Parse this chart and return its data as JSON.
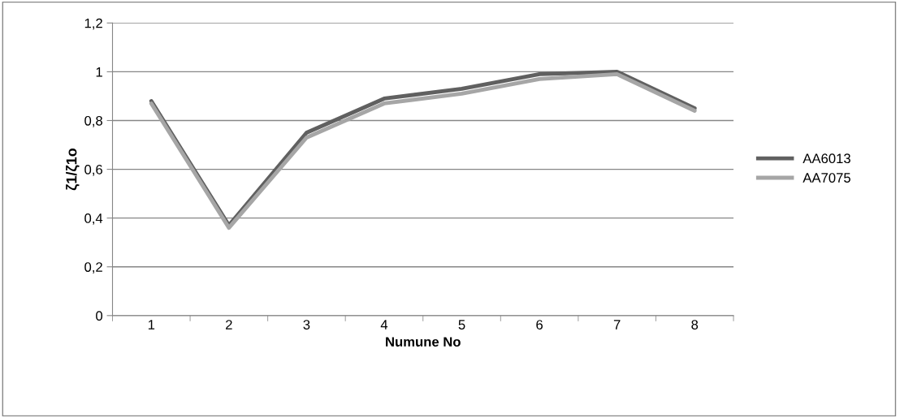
{
  "chart_data": {
    "type": "line",
    "xlabel": "Numune No",
    "ylabel": "ζ1/ζ1o",
    "categories": [
      "1",
      "2",
      "3",
      "4",
      "5",
      "6",
      "7",
      "8"
    ],
    "series": [
      {
        "name": "AA6013",
        "color": "#606060",
        "values": [
          0.88,
          0.37,
          0.75,
          0.89,
          0.93,
          0.99,
          1.0,
          0.85
        ]
      },
      {
        "name": "AA7075",
        "color": "#a6a6a6",
        "values": [
          0.87,
          0.36,
          0.73,
          0.87,
          0.91,
          0.97,
          0.99,
          0.84
        ]
      }
    ],
    "ylim": [
      0,
      1.2
    ],
    "yticks": [
      {
        "value": 0,
        "label": "0"
      },
      {
        "value": 0.2,
        "label": "0,2"
      },
      {
        "value": 0.4,
        "label": "0,4"
      },
      {
        "value": 0.6,
        "label": "0,6"
      },
      {
        "value": 0.8,
        "label": "0,8"
      },
      {
        "value": 1,
        "label": "1"
      },
      {
        "value": 1.2,
        "label": "1,2"
      }
    ],
    "grid": "y",
    "legend": "right",
    "marker": "none",
    "line_style": "solid"
  }
}
